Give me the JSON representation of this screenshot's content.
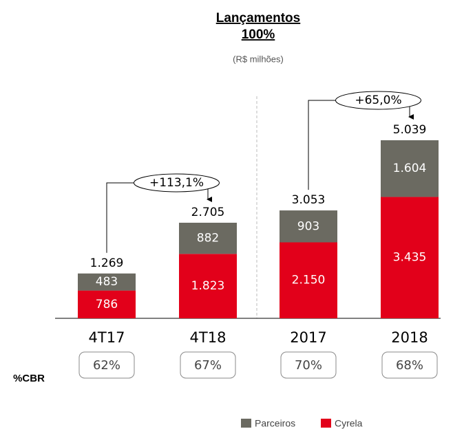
{
  "chart_data": {
    "type": "bar",
    "stacked": true,
    "title": "Lançamentos",
    "subtitle": "100%",
    "unit_label": "(R$ milhões)",
    "categories": [
      "4T17",
      "4T18",
      "2017",
      "2018"
    ],
    "series": [
      {
        "name": "Cyrela",
        "color": "#e2001a",
        "values": [
          786,
          1823,
          2150,
          3435
        ],
        "value_labels": [
          "786",
          "1.823",
          "2.150",
          "3.435"
        ]
      },
      {
        "name": "Parceiros",
        "color": "#6b6a61",
        "values": [
          483,
          882,
          903,
          1604
        ],
        "value_labels": [
          "483",
          "882",
          "903",
          "1.604"
        ]
      }
    ],
    "totals": {
      "values": [
        1269,
        2705,
        3053,
        5039
      ],
      "value_labels": [
        "1.269",
        "2.705",
        "3.053",
        "5.039"
      ]
    },
    "annotations": [
      "+113,1%",
      "+65,0%"
    ],
    "cbr": {
      "label": "%CBR",
      "values": [
        62,
        67,
        70,
        68
      ],
      "value_labels": [
        "62%",
        "67%",
        "70%",
        "68%"
      ]
    }
  }
}
